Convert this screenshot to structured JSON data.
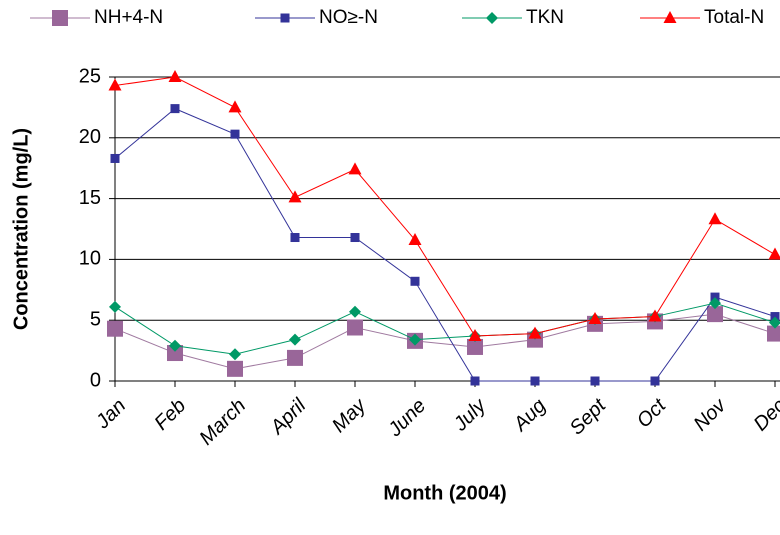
{
  "chart_data": {
    "type": "line",
    "x_label": "Month (2004)",
    "y_label": "Concentration (mg/L)",
    "categories": [
      "Jan",
      "Feb",
      "March",
      "April",
      "May",
      "June",
      "July",
      "Aug",
      "Sept",
      "Oct",
      "Nov",
      "Dec"
    ],
    "series": [
      {
        "name": "NH+4-N",
        "color": "#996699",
        "line_color": "#a07aa0",
        "marker": "big-square",
        "values": [
          4.3,
          2.3,
          1.0,
          1.9,
          4.4,
          3.3,
          2.8,
          3.4,
          4.7,
          4.9,
          5.5,
          3.9
        ]
      },
      {
        "name": "NO≥-N",
        "color": "#333399",
        "line_color": "#333399",
        "marker": "square",
        "values": [
          18.3,
          22.4,
          20.3,
          11.8,
          11.8,
          8.2,
          0,
          0,
          0,
          0,
          6.9,
          5.3
        ]
      },
      {
        "name": "TKN",
        "color": "#009966",
        "line_color": "#009966",
        "marker": "diamond",
        "values": [
          6.1,
          2.9,
          2.2,
          3.4,
          5.7,
          3.4,
          3.7,
          3.9,
          5.1,
          5.3,
          6.4,
          4.8
        ]
      },
      {
        "name": "Total-N",
        "color": "#ff0000",
        "line_color": "#ff0000",
        "marker": "triangle",
        "values": [
          24.3,
          25.0,
          22.5,
          15.1,
          17.4,
          11.6,
          3.7,
          3.9,
          5.1,
          5.3,
          13.3,
          10.4
        ]
      }
    ],
    "ylim": [
      0,
      25
    ],
    "yticks": [
      0,
      5,
      10,
      15,
      20,
      25
    ],
    "grid": true
  }
}
